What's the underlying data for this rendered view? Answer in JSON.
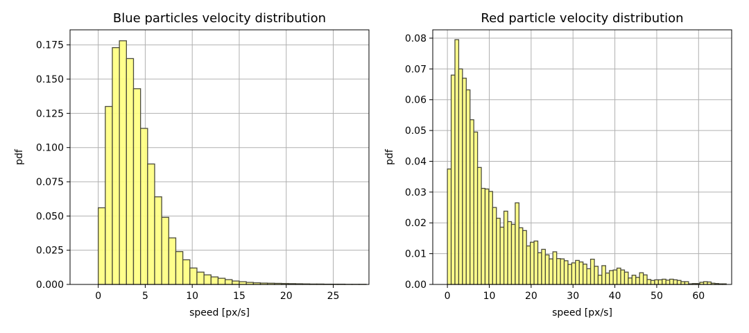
{
  "chart_data": [
    {
      "type": "bar",
      "title": "Blue particles velocity distribution",
      "xlabel": "speed [px/s]",
      "ylabel": "pdf",
      "xlim": [
        -3.0,
        28.8
      ],
      "ylim": [
        0,
        0.186
      ],
      "grid": true,
      "bar_color": "#ffff7f",
      "edge_color": "#4a4a3a",
      "bin_start": 0,
      "bin_width": 0.75,
      "values": [
        0.056,
        0.13,
        0.173,
        0.178,
        0.165,
        0.143,
        0.114,
        0.088,
        0.064,
        0.049,
        0.034,
        0.024,
        0.018,
        0.012,
        0.009,
        0.007,
        0.0055,
        0.0045,
        0.0035,
        0.0025,
        0.002,
        0.0015,
        0.0012,
        0.001,
        0.0009,
        0.0008,
        0.0007,
        0.0006,
        0.0005,
        0.0004,
        0.0003,
        0.0003,
        0.0002,
        0.0002,
        0.0002,
        0.0001,
        0.0001,
        0.0001
      ],
      "xticks": [
        0,
        5,
        10,
        15,
        20,
        25
      ],
      "xtick_labels": [
        "0",
        "5",
        "10",
        "15",
        "20",
        "25"
      ],
      "yticks": [
        0,
        0.025,
        0.05,
        0.075,
        0.1,
        0.125,
        0.15,
        0.175
      ],
      "ytick_labels": [
        "0.000",
        "0.025",
        "0.050",
        "0.075",
        "0.100",
        "0.125",
        "0.150",
        "0.175"
      ]
    },
    {
      "type": "bar",
      "title": "Red particle velocity distribution",
      "xlabel": "speed [px/s]",
      "ylabel": "pdf",
      "xlim": [
        -3.5,
        67.9
      ],
      "ylim": [
        0,
        0.0827
      ],
      "grid": true,
      "bar_color": "#ffff7f",
      "edge_color": "#4a4a3a",
      "bin_start": 0,
      "bin_width": 0.9,
      "values": [
        0.0375,
        0.068,
        0.0795,
        0.07,
        0.067,
        0.0632,
        0.0535,
        0.0495,
        0.038,
        0.0312,
        0.031,
        0.0302,
        0.025,
        0.0215,
        0.0186,
        0.0238,
        0.0204,
        0.0195,
        0.0265,
        0.0184,
        0.0175,
        0.0125,
        0.0137,
        0.0141,
        0.0103,
        0.0114,
        0.0096,
        0.0083,
        0.0106,
        0.0084,
        0.0083,
        0.0077,
        0.0065,
        0.007,
        0.0078,
        0.0073,
        0.0066,
        0.0051,
        0.0082,
        0.0059,
        0.003,
        0.0061,
        0.0037,
        0.0045,
        0.0047,
        0.0053,
        0.0047,
        0.004,
        0.0021,
        0.003,
        0.0023,
        0.0038,
        0.0031,
        0.0016,
        0.0013,
        0.0015,
        0.0015,
        0.0017,
        0.0014,
        0.0017,
        0.0015,
        0.0013,
        0.0009,
        0.0009,
        0.0002,
        0.0003,
        0.0003,
        0.0007,
        0.0009,
        0.0008,
        0.0004,
        0.0003,
        0.0002,
        0.0002
      ],
      "xticks": [
        0,
        10,
        20,
        30,
        40,
        50,
        60
      ],
      "xtick_labels": [
        "0",
        "10",
        "20",
        "30",
        "40",
        "50",
        "60"
      ],
      "yticks": [
        0,
        0.01,
        0.02,
        0.03,
        0.04,
        0.05,
        0.06,
        0.07,
        0.08
      ],
      "ytick_labels": [
        "0.00",
        "0.01",
        "0.02",
        "0.03",
        "0.04",
        "0.05",
        "0.06",
        "0.07",
        "0.08"
      ]
    }
  ]
}
